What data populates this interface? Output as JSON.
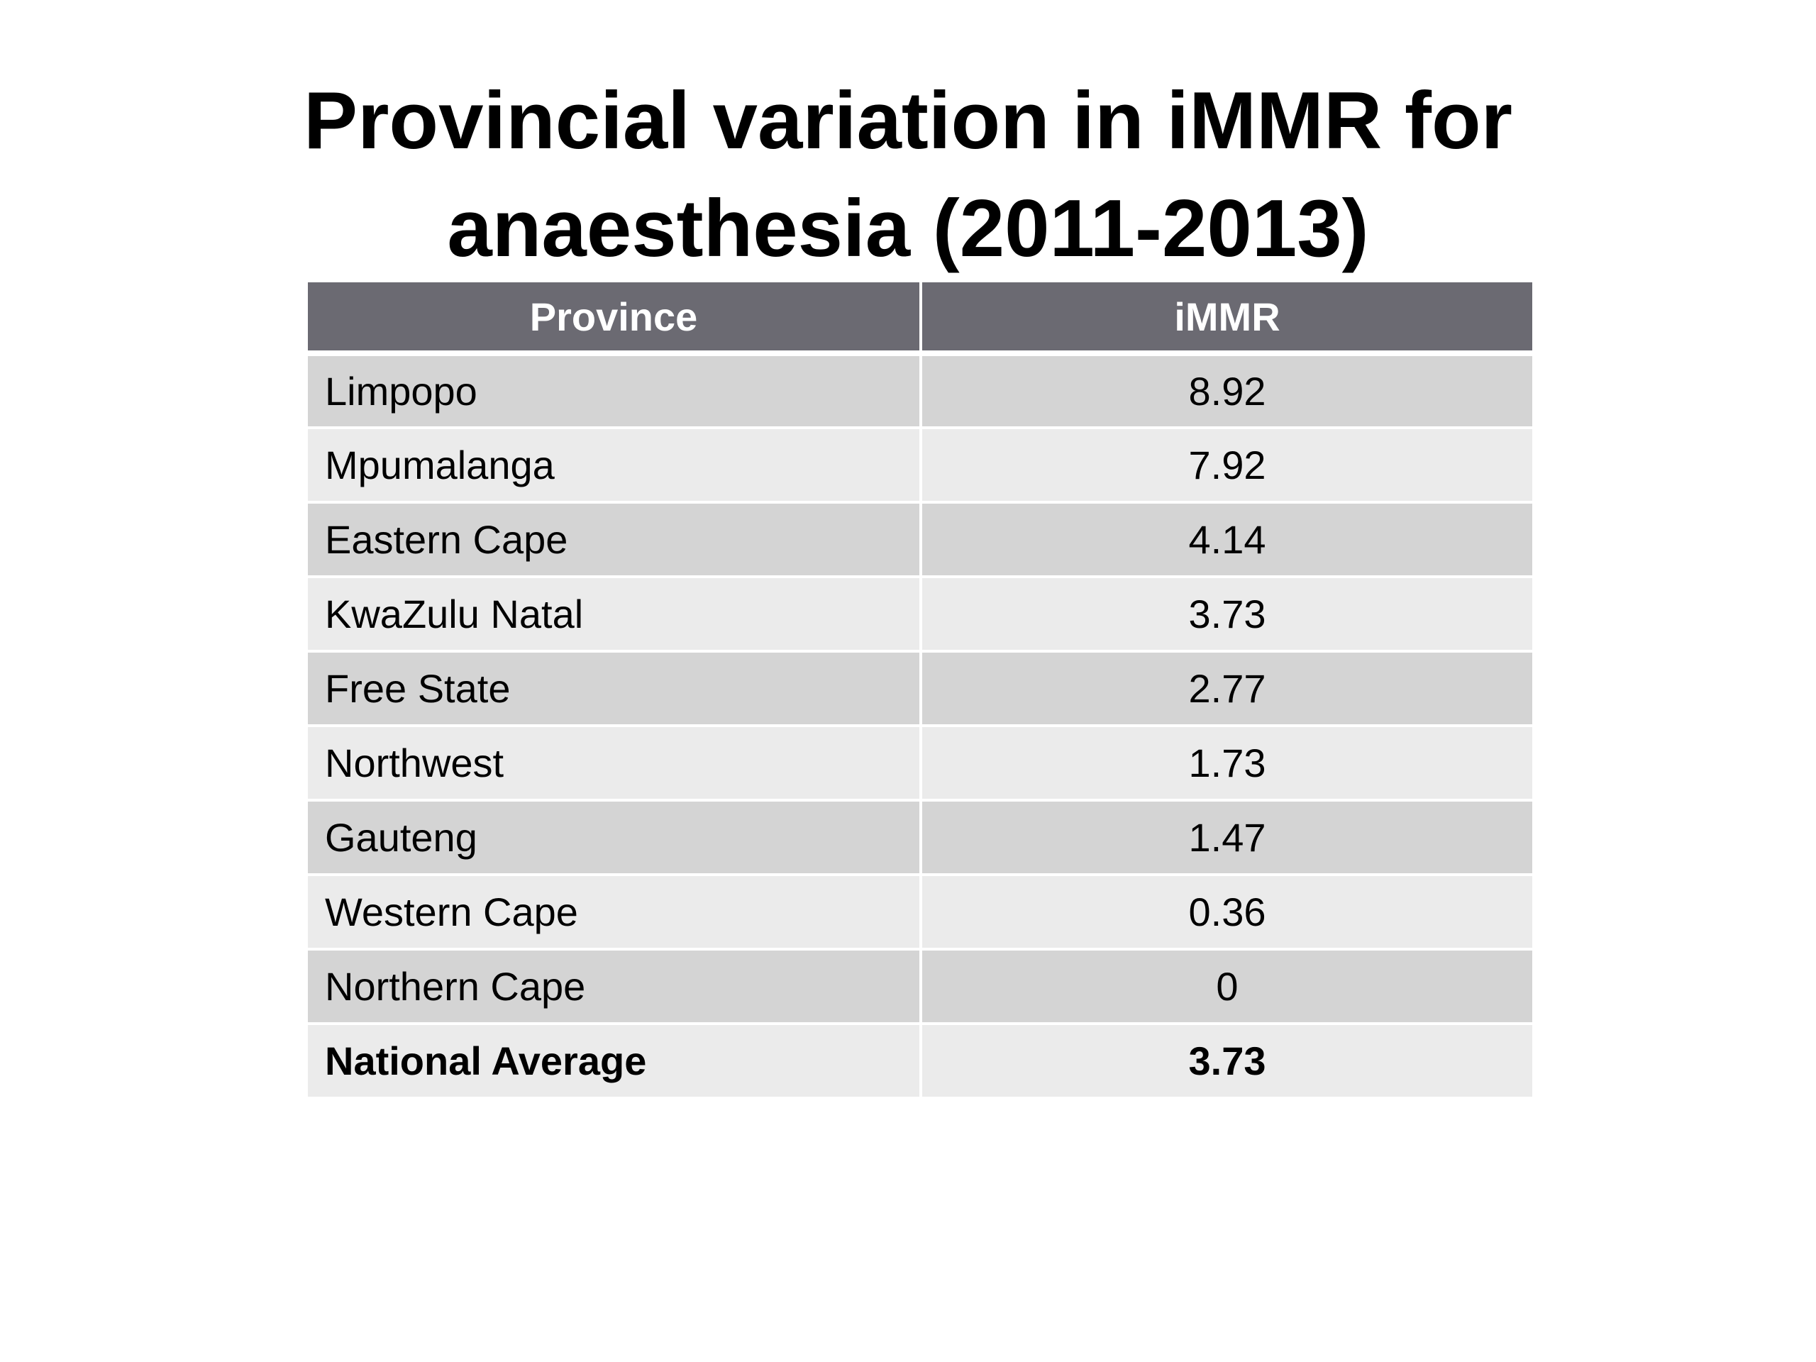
{
  "title": {
    "line1": "Provincial variation in iMMR for",
    "line2": "anaesthesia (2011-2013)"
  },
  "table": {
    "headers": [
      "Province",
      "iMMR"
    ],
    "rows": [
      {
        "province": "Limpopo",
        "immr": "8.92"
      },
      {
        "province": "Mpumalanga",
        "immr": "7.92"
      },
      {
        "province": "Eastern Cape",
        "immr": "4.14"
      },
      {
        "province": "KwaZulu Natal",
        "immr": "3.73"
      },
      {
        "province": "Free State",
        "immr": "2.77"
      },
      {
        "province": "Northwest",
        "immr": "1.73"
      },
      {
        "province": "Gauteng",
        "immr": "1.47"
      },
      {
        "province": "Western Cape",
        "immr": "0.36"
      },
      {
        "province": "Northern Cape",
        "immr": "0"
      }
    ],
    "total": {
      "province": "National Average",
      "immr": "3.73"
    }
  },
  "colors": {
    "header_bg": "#6b6a72",
    "row_dark": "#d4d4d4",
    "row_light": "#ebebeb"
  }
}
